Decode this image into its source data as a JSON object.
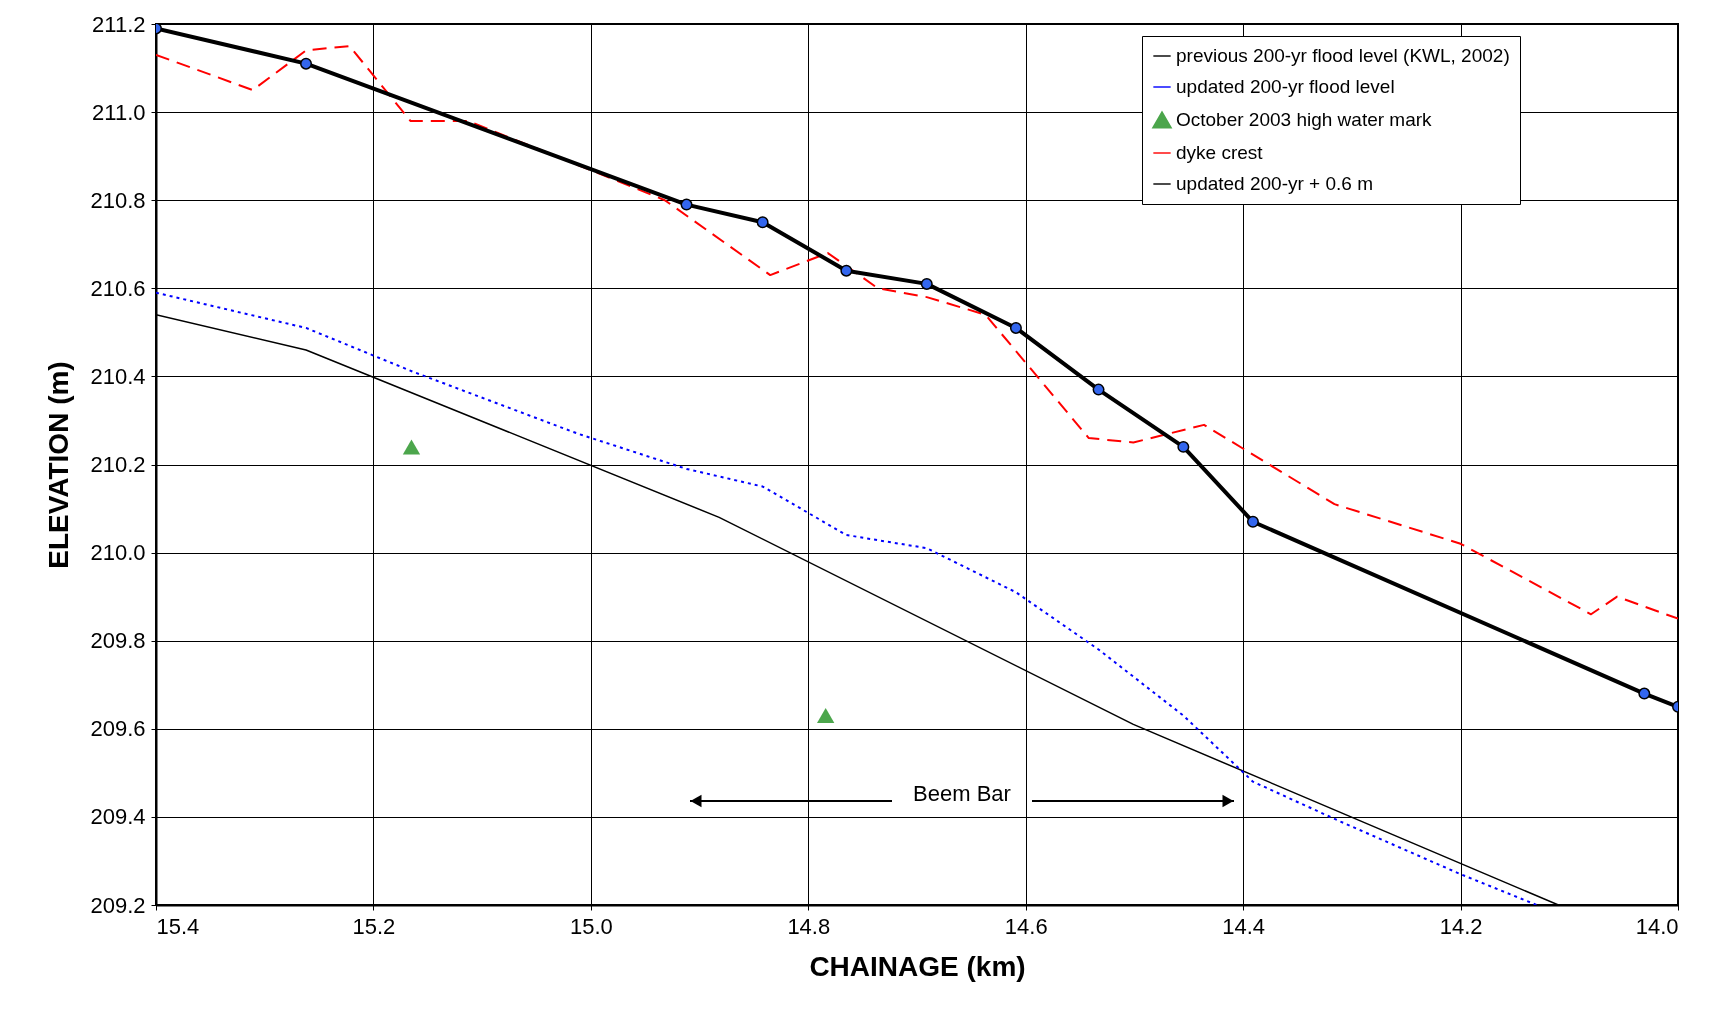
{
  "chart_data": {
    "type": "line",
    "xlabel": "CHAINAGE (km)",
    "ylabel": "ELEVATION (m)",
    "xlim": [
      15.4,
      14.0
    ],
    "ylim": [
      209.2,
      211.2
    ],
    "xticks": [
      15.4,
      15.2,
      {
        "value": 15,
        "label": "15.0"
      },
      14.8,
      14.6,
      14.4,
      14.2,
      {
        "value": 14,
        "label": "14.0"
      }
    ],
    "yticks": [
      209.2,
      209.4,
      209.6,
      209.8,
      {
        "value": 210,
        "label": "210.0"
      },
      210.2,
      210.4,
      210.6,
      210.8,
      {
        "value": 211,
        "label": "211.0"
      },
      211.2
    ],
    "grid": true,
    "legend": "top right",
    "series": [
      {
        "name": "previous 200-yr flood level (KWL, 2002)",
        "color": "#000000",
        "line_style": "solid",
        "x": [
          15.4,
          15.262,
          14.882,
          14.501,
          14.11
        ],
        "values": [
          210.54,
          210.46,
          210.08,
          209.61,
          209.2
        ]
      },
      {
        "name": "updated 200-yr flood level",
        "color": "#0000ff",
        "line_style": "dotted",
        "x": [
          15.4,
          15.262,
          15.163,
          15.012,
          14.912,
          14.842,
          14.765,
          14.691,
          14.609,
          14.533,
          14.455,
          14.391,
          14.311,
          14.2,
          14.13
        ],
        "values": [
          210.59,
          210.51,
          210.41,
          210.27,
          210.19,
          210.15,
          210.04,
          210.01,
          209.91,
          209.78,
          209.63,
          209.48,
          209.39,
          209.27,
          209.2
        ]
      },
      {
        "name": "October 2003 high water mark",
        "type": "scatter",
        "color": "#008000",
        "marker": "triangle",
        "x": [
          15.165,
          14.784
        ],
        "values": [
          210.24,
          209.63
        ]
      },
      {
        "name": "dyke crest",
        "color": "#ff0000",
        "line_style": "dashed",
        "x": [
          15.4,
          15.311,
          15.262,
          15.222,
          15.166,
          15.113,
          15.012,
          14.932,
          14.835,
          14.782,
          14.736,
          14.691,
          14.637,
          14.542,
          14.501,
          14.436,
          14.316,
          14.2,
          14.08,
          14.056,
          14.0
        ],
        "values": [
          211.13,
          211.05,
          211.14,
          211.15,
          210.98,
          210.98,
          210.88,
          210.8,
          210.63,
          210.68,
          210.6,
          210.58,
          210.54,
          210.26,
          210.25,
          210.29,
          210.11,
          210.02,
          209.86,
          209.9,
          209.85
        ]
      },
      {
        "name": "updated 200-yr + 0.6 m",
        "color": "#000000",
        "line_style": "solid",
        "marker": "circle",
        "x": [
          15.4,
          15.262,
          14.912,
          14.842,
          14.765,
          14.691,
          14.609,
          14.533,
          14.455,
          14.391,
          14.031,
          14.0
        ],
        "values": [
          211.19,
          211.11,
          210.79,
          210.75,
          210.64,
          210.61,
          210.51,
          210.37,
          210.24,
          210.07,
          209.68,
          209.65
        ]
      }
    ],
    "annotations": [
      "Beem Bar"
    ]
  }
}
